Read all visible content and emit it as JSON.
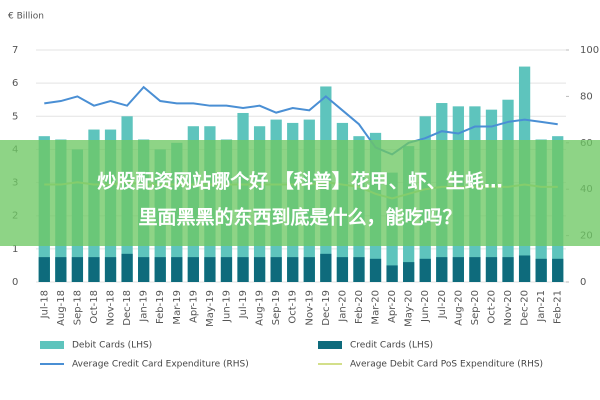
{
  "chart_data": {
    "type": "bar-line",
    "y_label": "€ Billion",
    "categories": [
      "Jul-18",
      "Aug-18",
      "Sep-18",
      "Oct-18",
      "Nov-18",
      "Dec-18",
      "Jan-19",
      "Feb-19",
      "Mar-19",
      "Apr-19",
      "May-19",
      "Jun-19",
      "Jul-19",
      "Aug-19",
      "Sep-19",
      "Oct-19",
      "Nov-19",
      "Dec-19",
      "Jan-20",
      "Feb-20",
      "Mar-20",
      "Apr-20",
      "May-20",
      "Jun-20",
      "Jul-20",
      "Aug-20",
      "Sep-20",
      "Oct-20",
      "Nov-20",
      "Dec-20",
      "Jan-21",
      "Feb-21"
    ],
    "series": [
      {
        "name": "Debit Cards (LHS)",
        "kind": "bar",
        "color": "#5ec4bd",
        "values": [
          4.4,
          4.3,
          4.0,
          4.6,
          4.6,
          5.0,
          4.3,
          4.0,
          4.2,
          4.7,
          4.7,
          4.3,
          5.1,
          4.7,
          4.9,
          4.8,
          4.9,
          5.9,
          4.8,
          4.4,
          4.5,
          3.3,
          4.1,
          5.0,
          5.4,
          5.3,
          5.3,
          5.2,
          5.5,
          6.5,
          4.3,
          4.4
        ]
      },
      {
        "name": "Credit Cards (LHS)",
        "kind": "bar",
        "color": "#0e6b7c",
        "values": [
          0.75,
          0.75,
          0.75,
          0.75,
          0.75,
          0.85,
          0.75,
          0.75,
          0.75,
          0.75,
          0.75,
          0.75,
          0.75,
          0.75,
          0.75,
          0.75,
          0.75,
          0.85,
          0.75,
          0.75,
          0.7,
          0.5,
          0.6,
          0.7,
          0.75,
          0.75,
          0.75,
          0.75,
          0.75,
          0.8,
          0.7,
          0.7
        ]
      },
      {
        "name": "Average Credit Card Expenditure (RHS)",
        "kind": "line",
        "axis": "y2",
        "color": "#4a8fd4",
        "values": [
          77,
          78,
          80,
          76,
          78,
          76,
          84,
          78,
          77,
          77,
          76,
          76,
          75,
          76,
          73,
          75,
          74,
          80,
          74,
          68,
          58,
          55,
          60,
          62,
          65,
          64,
          67,
          67,
          69,
          70,
          69,
          68
        ]
      },
      {
        "name": "Average Debit Card PoS Expenditure (RHS)",
        "kind": "line",
        "axis": "y2",
        "color": "#d3df8a",
        "values": [
          42,
          42,
          43,
          42,
          42,
          43,
          42,
          42,
          42,
          42,
          42,
          42,
          42,
          42,
          42,
          42,
          42,
          43,
          42,
          41,
          38,
          36,
          38,
          40,
          41,
          41,
          41,
          41,
          41,
          42,
          41,
          41
        ]
      }
    ],
    "ylim": [
      0,
      7
    ],
    "yticks": [
      0,
      1,
      2,
      3,
      4,
      5,
      6,
      7
    ],
    "y2lim": [
      0,
      100
    ],
    "y2ticks": [
      0,
      20,
      40,
      60,
      80,
      100
    ],
    "grid": true,
    "banner": {
      "line1": "炒股配资网站哪个好 【科普】花甲、虾、生蚝…",
      "line2": "里面黑黑的东西到底是什么，能吃吗？"
    }
  }
}
